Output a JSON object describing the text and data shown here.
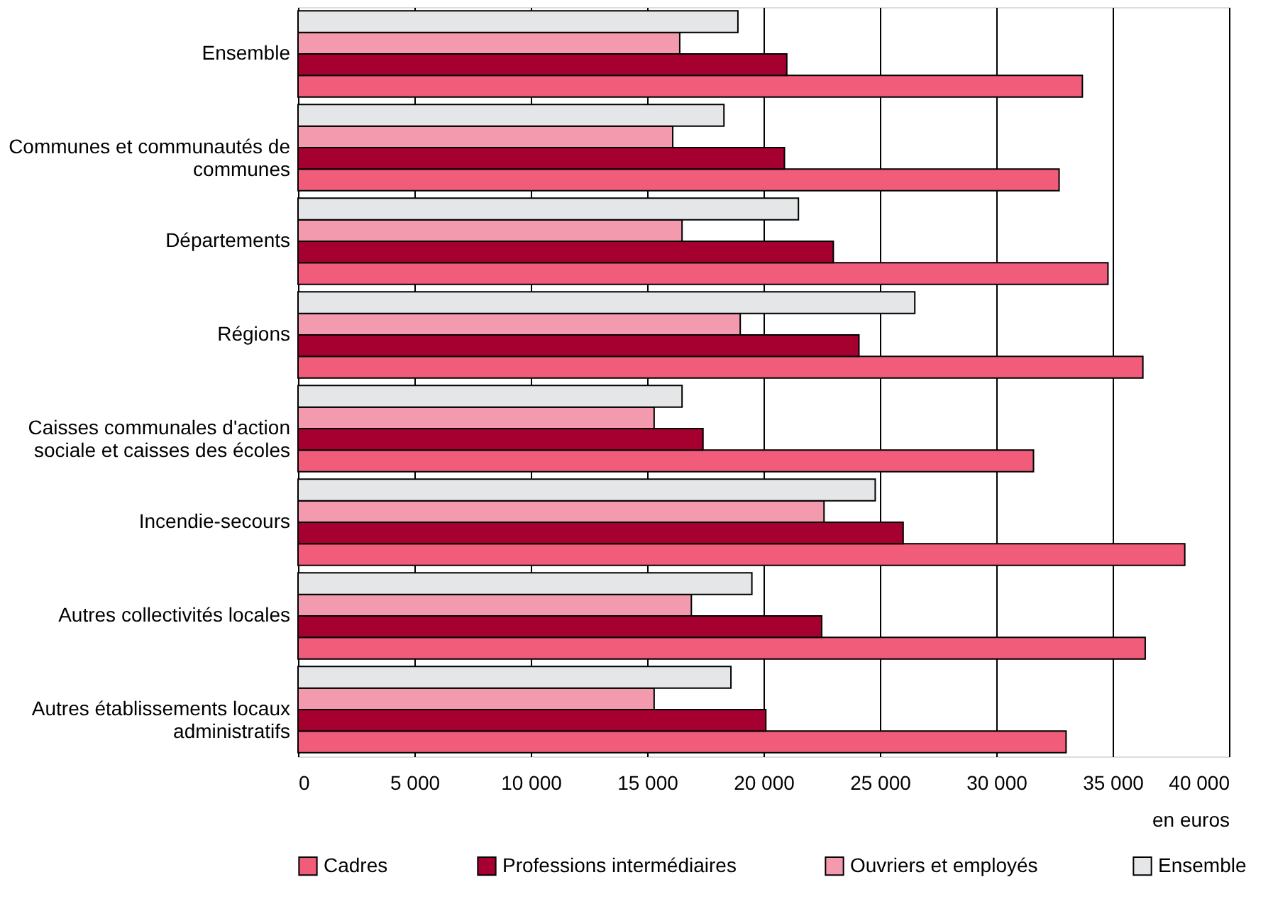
{
  "chart_data": {
    "type": "bar",
    "orientation": "horizontal",
    "xlabel": "en euros",
    "categories": [
      "Ensemble",
      "Communes et communautés de communes",
      "Départements",
      "Régions",
      "Caisses communales d'action sociale et caisses des écoles",
      "Incendie-secours",
      "Autres collectivités locales",
      "Autres établissements locaux administratifs"
    ],
    "series": [
      {
        "name": "Cadres",
        "color": "#f05c7a",
        "values": [
          33700,
          32700,
          34800,
          36300,
          31600,
          38100,
          36400,
          33000
        ]
      },
      {
        "name": "Professions intermédiaires",
        "color": "#a50030",
        "values": [
          21000,
          20900,
          23000,
          24100,
          17400,
          26000,
          22500,
          20100
        ]
      },
      {
        "name": "Ouvriers et  employés",
        "color": "#f49aae",
        "values": [
          16400,
          16100,
          16500,
          19000,
          15300,
          22600,
          16900,
          15300
        ]
      },
      {
        "name": "Ensemble",
        "color": "#e5e6e8",
        "values": [
          18900,
          18300,
          21500,
          26500,
          16500,
          24800,
          19500,
          18600
        ]
      }
    ],
    "xlim": [
      0,
      40000
    ],
    "xticks": [
      0,
      {
        "value": 5000,
        "label": "5 000"
      },
      {
        "value": 10000,
        "label": "10 000"
      },
      {
        "value": 15000,
        "label": "15 000"
      },
      {
        "value": 20000,
        "label": "20 000"
      },
      {
        "value": 25000,
        "label": "25 000"
      },
      {
        "value": 30000,
        "label": "30 000"
      },
      {
        "value": 35000,
        "label": "35 000"
      },
      {
        "value": 40000,
        "label": "40 000"
      }
    ],
    "grid": "x",
    "legend": "bottom"
  }
}
